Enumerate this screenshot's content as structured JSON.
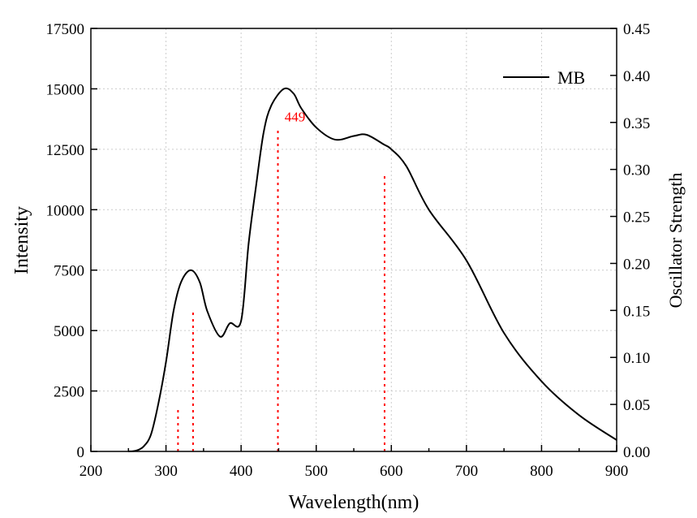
{
  "chart_data": {
    "type": "line",
    "xlabel": "Wavelength(nm)",
    "ylabel": "Intensity",
    "y2label": "Oscillator Strength",
    "xlim": [
      200,
      900
    ],
    "ylim": [
      0,
      17500
    ],
    "y2lim": [
      0,
      0.45
    ],
    "xticks": [
      "200",
      "300",
      "400",
      "500",
      "600",
      "700",
      "800",
      "900"
    ],
    "yticks": [
      "0",
      "2500",
      "5000",
      "7500",
      "10000",
      "12500",
      "15000",
      "17500"
    ],
    "y2ticks": [
      "0.00",
      "0.05",
      "0.10",
      "0.15",
      "0.20",
      "0.25",
      "0.30",
      "0.35",
      "0.40",
      "0.45"
    ],
    "grid": true,
    "legend": {
      "position": "top-right",
      "entries": [
        "MB"
      ]
    },
    "series": [
      {
        "name": "MB",
        "color": "#000000",
        "x": [
          250,
          260,
          270,
          280,
          290,
          300,
          310,
          320,
          333,
          345,
          355,
          372,
          385,
          400,
          410,
          420,
          430,
          440,
          457,
          470,
          480,
          500,
          525,
          550,
          567,
          590,
          600,
          620,
          650,
          700,
          750,
          800,
          850,
          900
        ],
        "y": [
          0,
          30,
          200,
          700,
          2000,
          3700,
          5800,
          7000,
          7500,
          7000,
          5800,
          4750,
          5300,
          5400,
          8600,
          11000,
          13200,
          14300,
          15000,
          14800,
          14200,
          13400,
          12900,
          13050,
          13100,
          12700,
          12500,
          11800,
          10000,
          7900,
          4900,
          2900,
          1500,
          470
        ]
      }
    ],
    "oscillator_lines": {
      "color": "#ff0000",
      "x": [
        316,
        336,
        449,
        591
      ],
      "y": [
        0.046,
        0.15,
        0.345,
        0.297
      ]
    },
    "annotations": [
      {
        "text": "449",
        "x": 449
      }
    ]
  }
}
